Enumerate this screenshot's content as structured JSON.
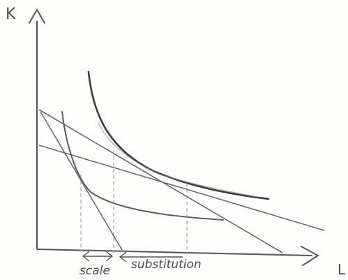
{
  "axes": {
    "y_label": "K",
    "x_label": "L"
  },
  "decomposition": {
    "left_label": "scale",
    "right_label": "substitution"
  },
  "colors": {
    "pencil_dark": "#3a3a3a",
    "pencil_mid": "#5e5e5e",
    "pencil_light": "#8a8a8a",
    "guide": "#9a9a9a"
  }
}
